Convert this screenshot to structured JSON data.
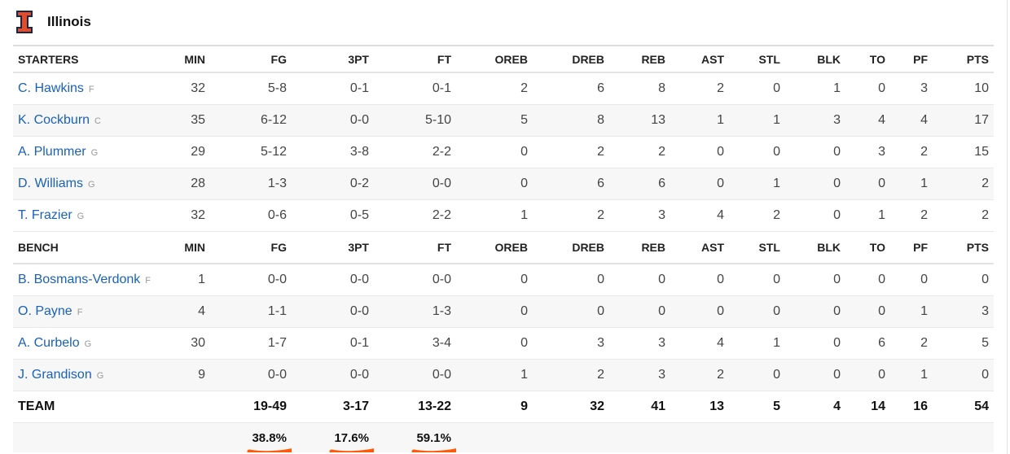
{
  "team": {
    "name": "Illinois",
    "logo_icon": "illinois-block-i-logo",
    "logo_color": "#e84a27",
    "logo_outline": "#13294b"
  },
  "columns": [
    "MIN",
    "FG",
    "3PT",
    "FT",
    "OREB",
    "DREB",
    "REB",
    "AST",
    "STL",
    "BLK",
    "TO",
    "PF",
    "PTS"
  ],
  "starters_label": "STARTERS",
  "bench_label": "BENCH",
  "starters": [
    {
      "name": "C. Hawkins",
      "pos": "F",
      "stats": [
        "32",
        "5-8",
        "0-1",
        "0-1",
        "2",
        "6",
        "8",
        "2",
        "0",
        "1",
        "0",
        "3",
        "10"
      ]
    },
    {
      "name": "K. Cockburn",
      "pos": "C",
      "stats": [
        "35",
        "6-12",
        "0-0",
        "5-10",
        "5",
        "8",
        "13",
        "1",
        "1",
        "3",
        "4",
        "4",
        "17"
      ]
    },
    {
      "name": "A. Plummer",
      "pos": "G",
      "stats": [
        "29",
        "5-12",
        "3-8",
        "2-2",
        "0",
        "2",
        "2",
        "0",
        "0",
        "0",
        "3",
        "2",
        "15"
      ]
    },
    {
      "name": "D. Williams",
      "pos": "G",
      "stats": [
        "28",
        "1-3",
        "0-2",
        "0-0",
        "0",
        "6",
        "6",
        "0",
        "1",
        "0",
        "0",
        "1",
        "2"
      ]
    },
    {
      "name": "T. Frazier",
      "pos": "G",
      "stats": [
        "32",
        "0-6",
        "0-5",
        "2-2",
        "1",
        "2",
        "3",
        "4",
        "2",
        "0",
        "1",
        "2",
        "2"
      ]
    }
  ],
  "bench": [
    {
      "name": "B. Bosmans-Verdonk",
      "pos": "F",
      "stats": [
        "1",
        "0-0",
        "0-0",
        "0-0",
        "0",
        "0",
        "0",
        "0",
        "0",
        "0",
        "0",
        "0",
        "0"
      ]
    },
    {
      "name": "O. Payne",
      "pos": "F",
      "stats": [
        "4",
        "1-1",
        "0-0",
        "1-3",
        "0",
        "0",
        "0",
        "0",
        "0",
        "0",
        "0",
        "1",
        "3"
      ]
    },
    {
      "name": "A. Curbelo",
      "pos": "G",
      "stats": [
        "30",
        "1-7",
        "0-1",
        "3-4",
        "0",
        "3",
        "3",
        "4",
        "1",
        "0",
        "6",
        "2",
        "5"
      ]
    },
    {
      "name": "J. Grandison",
      "pos": "G",
      "stats": [
        "9",
        "0-0",
        "0-0",
        "0-0",
        "1",
        "2",
        "3",
        "2",
        "0",
        "0",
        "0",
        "1",
        "0"
      ]
    }
  ],
  "totals": {
    "label": "TEAM",
    "stats": [
      "",
      "19-49",
      "3-17",
      "13-22",
      "9",
      "32",
      "41",
      "13",
      "5",
      "4",
      "14",
      "16",
      "54"
    ]
  },
  "percentages": {
    "fg": "38.8%",
    "three": "17.6%",
    "ft": "59.1%"
  },
  "annotation_color": "#ff5a0a"
}
